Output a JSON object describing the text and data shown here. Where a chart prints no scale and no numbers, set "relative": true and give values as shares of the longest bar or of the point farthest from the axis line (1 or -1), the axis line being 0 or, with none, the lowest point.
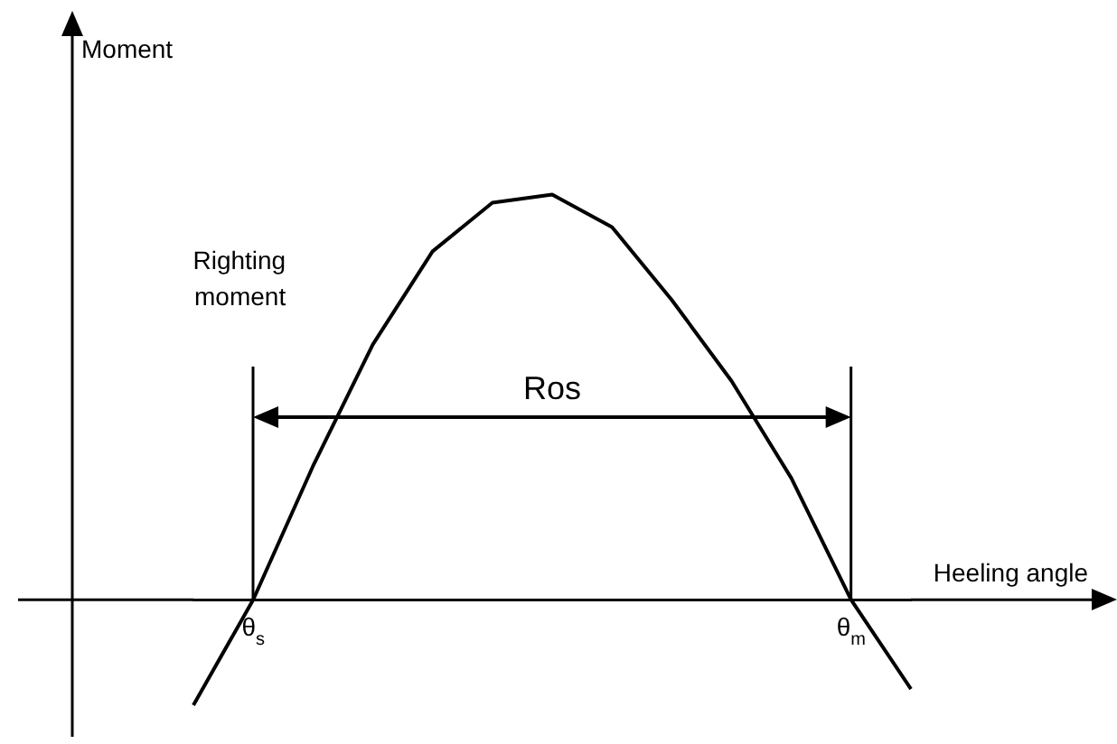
{
  "chart_data": {
    "type": "line",
    "relative": true,
    "xlabel": "Heeling angle",
    "color": "#000000",
    "tick_labels": "x",
    "grid": false,
    "legend": false,
    "marker": "none",
    "line_style": "solid",
    "categories": [
      null,
      "θ$_{s}$",
      null,
      null,
      null,
      null,
      null,
      null,
      null,
      null,
      null,
      "θ$_{m}$",
      null
    ],
    "values": [
      -0.26,
      0,
      0.33,
      0.63,
      0.86,
      0.98,
      1,
      0.92,
      0.74,
      0.54,
      0.3,
      0,
      -0.22
    ],
    "annotations": [
      "Moment",
      "Righting moment",
      "Ros"
    ]
  }
}
